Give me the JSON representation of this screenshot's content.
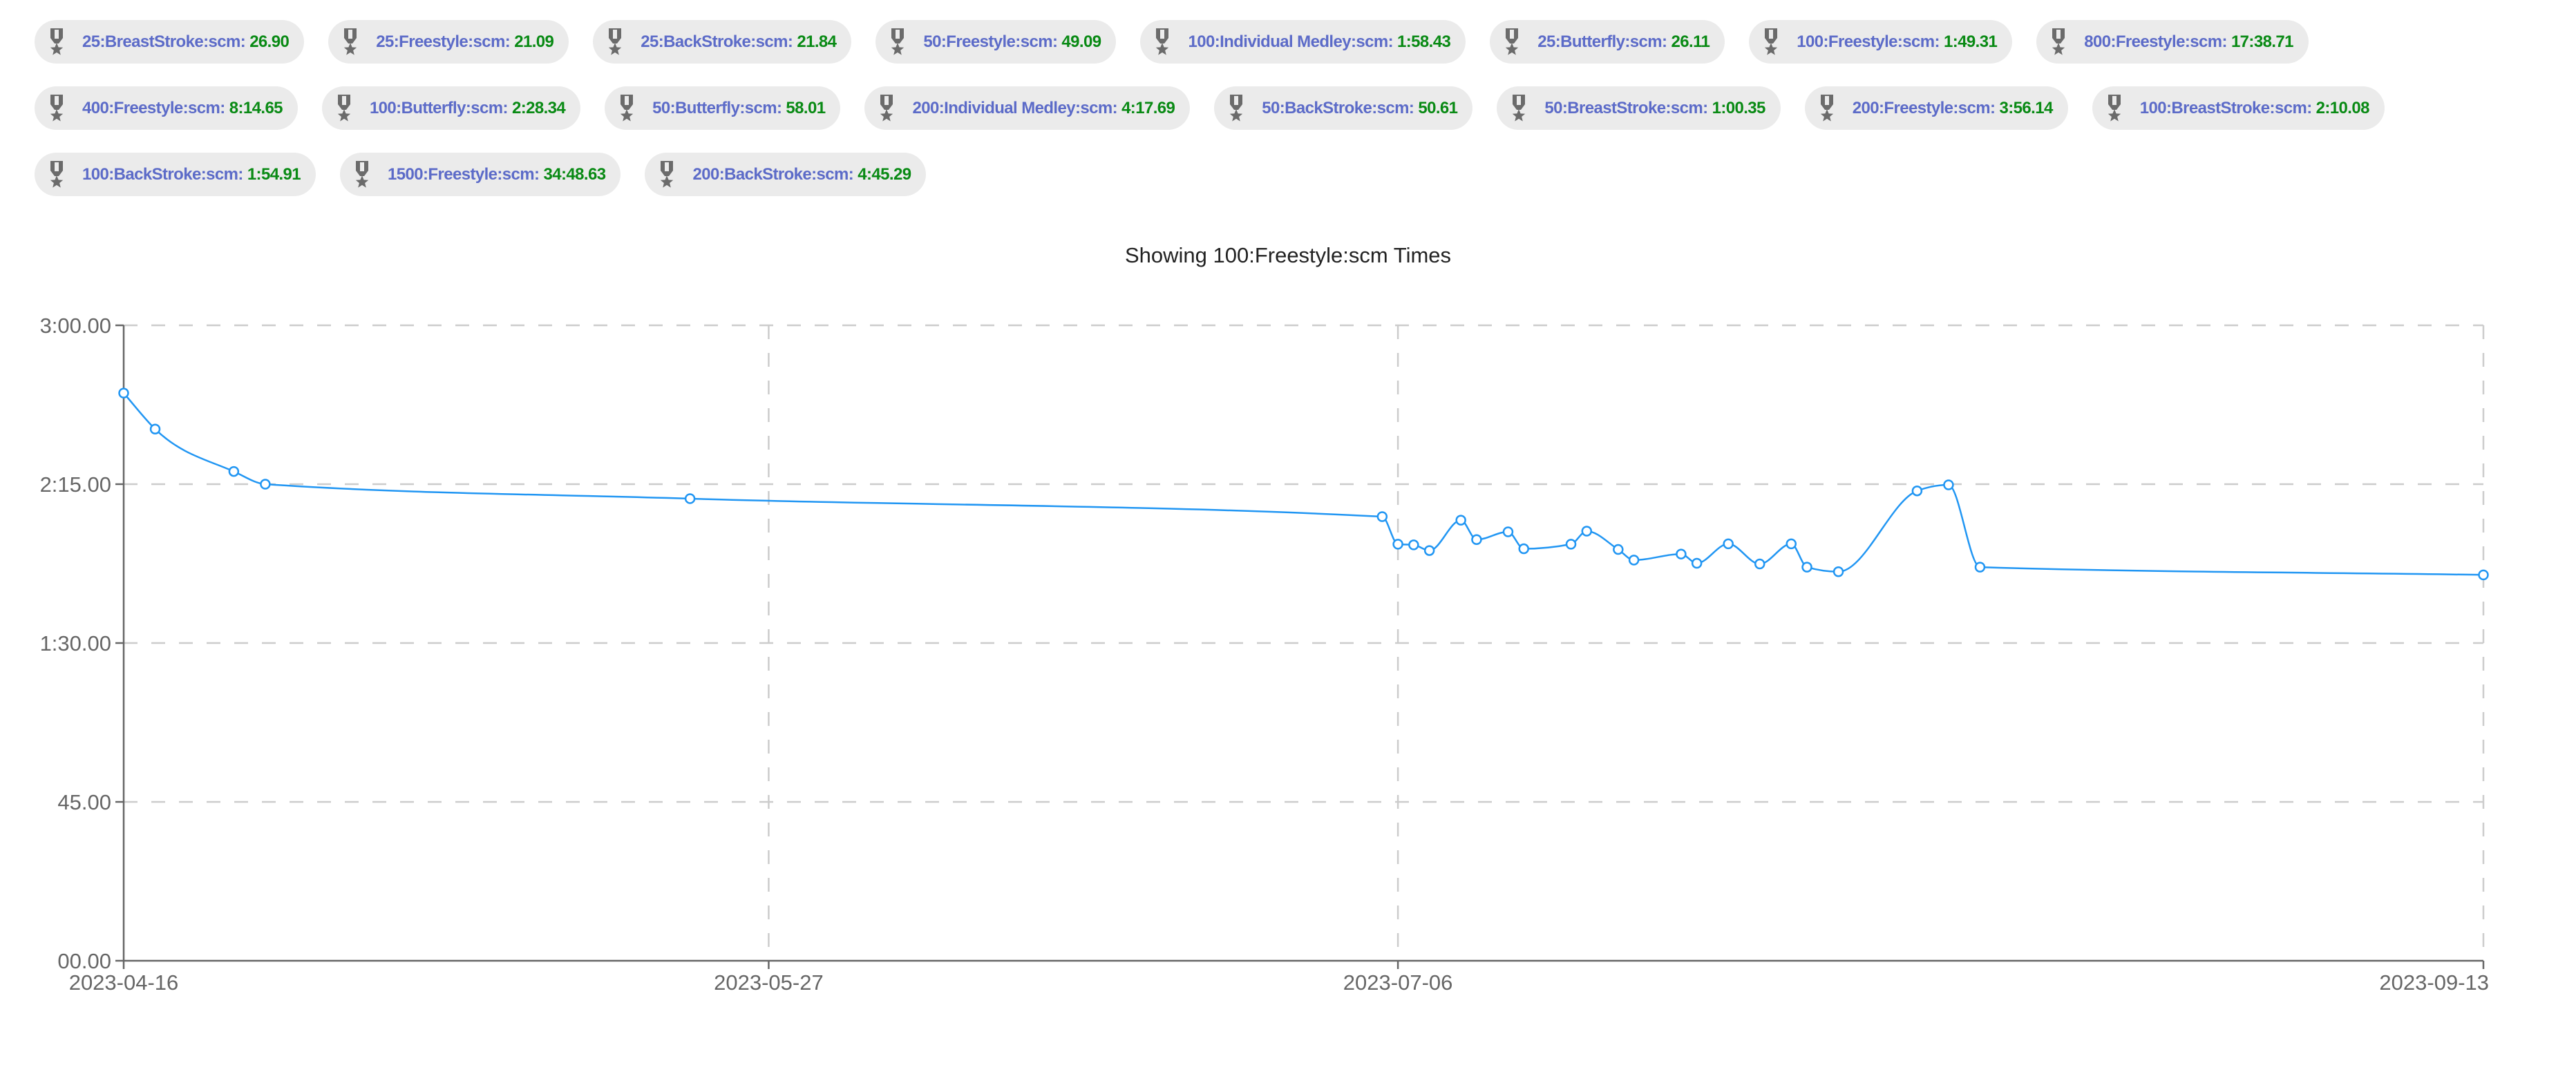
{
  "colors": {
    "chip_bg": "#ebebeb",
    "label": "#5c6bc8",
    "value": "#098a14",
    "line": "#2196f3",
    "grid": "#cccccc",
    "axis": "#666666"
  },
  "chips": [
    {
      "icon": "medal-icon",
      "label": "25:BreastStroke:scm",
      "value": "26.90"
    },
    {
      "icon": "medal-icon",
      "label": "25:Freestyle:scm",
      "value": "21.09"
    },
    {
      "icon": "medal-icon",
      "label": "25:BackStroke:scm",
      "value": "21.84"
    },
    {
      "icon": "medal-icon",
      "label": "50:Freestyle:scm",
      "value": "49.09"
    },
    {
      "icon": "medal-icon",
      "label": "100:Individual Medley:scm",
      "value": "1:58.43"
    },
    {
      "icon": "medal-icon",
      "label": "25:Butterfly:scm",
      "value": "26.11"
    },
    {
      "icon": "medal-icon",
      "label": "100:Freestyle:scm",
      "value": "1:49.31"
    },
    {
      "icon": "medal-icon",
      "label": "800:Freestyle:scm",
      "value": "17:38.71"
    },
    {
      "icon": "medal-icon",
      "label": "400:Freestyle:scm",
      "value": "8:14.65"
    },
    {
      "icon": "medal-icon",
      "label": "100:Butterfly:scm",
      "value": "2:28.34"
    },
    {
      "icon": "medal-icon",
      "label": "50:Butterfly:scm",
      "value": "58.01"
    },
    {
      "icon": "medal-icon",
      "label": "200:Individual Medley:scm",
      "value": "4:17.69"
    },
    {
      "icon": "medal-icon",
      "label": "50:BackStroke:scm",
      "value": "50.61"
    },
    {
      "icon": "medal-icon",
      "label": "50:BreastStroke:scm",
      "value": "1:00.35"
    },
    {
      "icon": "medal-icon",
      "label": "200:Freestyle:scm",
      "value": "3:56.14"
    },
    {
      "icon": "medal-icon",
      "label": "100:BreastStroke:scm",
      "value": "2:10.08"
    },
    {
      "icon": "medal-icon",
      "label": "100:BackStroke:scm",
      "value": "1:54.91"
    },
    {
      "icon": "medal-icon",
      "label": "1500:Freestyle:scm",
      "value": "34:48.63"
    },
    {
      "icon": "medal-icon",
      "label": "200:BackStroke:scm",
      "value": "4:45.29"
    }
  ],
  "chart_data": {
    "type": "line",
    "title": "Showing 100:Freestyle:scm Times",
    "xlabel": "",
    "ylabel": "",
    "x_type": "date",
    "xlim": [
      "2023-04-16",
      "2023-09-13"
    ],
    "ylim": [
      "00.00",
      "3:00.00"
    ],
    "x_ticks": [
      "2023-04-16",
      "2023-05-27",
      "2023-07-06",
      "2023-09-13"
    ],
    "y_ticks": [
      "00.00",
      "45.00",
      "1:30.00",
      "2:15.00",
      "3:00.00"
    ],
    "grid": true,
    "curve": "smooth-monotone",
    "points": [
      {
        "x": "2023-04-16",
        "y": "2:40.8"
      },
      {
        "x": "2023-04-18",
        "y": "2:30.6"
      },
      {
        "x": "2023-04-23",
        "y": "2:18.6"
      },
      {
        "x": "2023-04-25",
        "y": "2:15.0"
      },
      {
        "x": "2023-05-22",
        "y": "2:10.9"
      },
      {
        "x": "2023-07-05",
        "y": "2:05.8"
      },
      {
        "x": "2023-07-06",
        "y": "1:58.0"
      },
      {
        "x": "2023-07-07",
        "y": "1:57.8"
      },
      {
        "x": "2023-07-08",
        "y": "1:56.2"
      },
      {
        "x": "2023-07-10",
        "y": "2:04.8"
      },
      {
        "x": "2023-07-11",
        "y": "1:59.3"
      },
      {
        "x": "2023-07-13",
        "y": "2:01.5"
      },
      {
        "x": "2023-07-14",
        "y": "1:56.7"
      },
      {
        "x": "2023-07-17",
        "y": "1:58.0"
      },
      {
        "x": "2023-07-18",
        "y": "2:01.7"
      },
      {
        "x": "2023-07-20",
        "y": "1:56.5"
      },
      {
        "x": "2023-07-21",
        "y": "1:53.5"
      },
      {
        "x": "2023-07-24",
        "y": "1:55.2"
      },
      {
        "x": "2023-07-25",
        "y": "1:52.6"
      },
      {
        "x": "2023-07-27",
        "y": "1:58.1"
      },
      {
        "x": "2023-07-29",
        "y": "1:52.4"
      },
      {
        "x": "2023-07-31",
        "y": "1:58.1"
      },
      {
        "x": "2023-08-01",
        "y": "1:51.5"
      },
      {
        "x": "2023-08-03",
        "y": "1:50.2"
      },
      {
        "x": "2023-08-08",
        "y": "2:13.1"
      },
      {
        "x": "2023-08-10",
        "y": "2:14.8"
      },
      {
        "x": "2023-08-12",
        "y": "1:51.5"
      },
      {
        "x": "2023-09-13",
        "y": "1:49.3"
      }
    ]
  }
}
